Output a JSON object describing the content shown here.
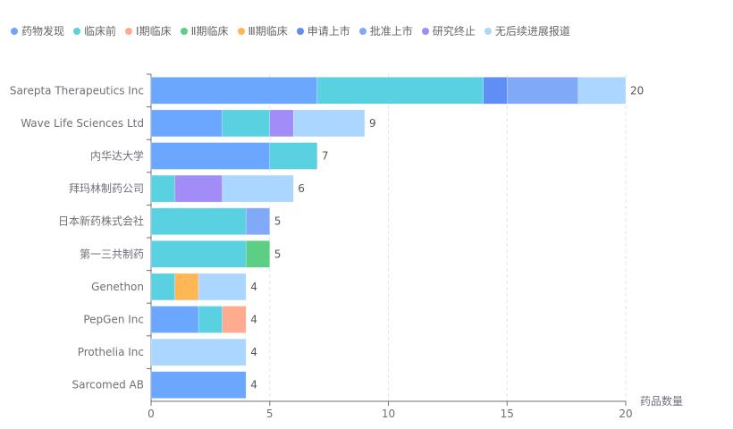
{
  "chart_data": {
    "type": "bar",
    "orientation": "horizontal",
    "stacked": true,
    "xlabel": "药品数量",
    "xlim": [
      0,
      20
    ],
    "xticks": [
      0,
      5,
      10,
      15,
      20
    ],
    "grid": "vertical dashed",
    "legend_position": "top-left",
    "categories": [
      "Sarepta Therapeutics Inc",
      "Wave Life Sciences Ltd",
      "内华达大学",
      "拜玛林制药公司",
      "日本新药株式会社",
      "第一三共制药",
      "Genethon",
      "PepGen Inc",
      "Prothelia Inc",
      "Sarcomed AB"
    ],
    "totals": [
      20,
      9,
      7,
      6,
      5,
      5,
      4,
      4,
      4,
      4
    ],
    "series": [
      {
        "name": "药物发现",
        "color": "#6ba7ff",
        "values": [
          7,
          3,
          5,
          0,
          0,
          0,
          0,
          2,
          0,
          4
        ]
      },
      {
        "name": "临床前",
        "color": "#5ad1e0",
        "values": [
          7,
          2,
          2,
          1,
          4,
          4,
          1,
          1,
          0,
          0
        ]
      },
      {
        "name": "Ⅰ期临床",
        "color": "#ffab8f",
        "values": [
          0,
          0,
          0,
          0,
          0,
          0,
          0,
          1,
          0,
          0
        ]
      },
      {
        "name": "Ⅱ期临床",
        "color": "#5dcf85",
        "values": [
          0,
          0,
          0,
          0,
          0,
          1,
          0,
          0,
          0,
          0
        ]
      },
      {
        "name": "Ⅲ期临床",
        "color": "#ffb655",
        "values": [
          0,
          0,
          0,
          0,
          0,
          0,
          1,
          0,
          0,
          0
        ]
      },
      {
        "name": "申请上市",
        "color": "#5f8ef5",
        "values": [
          1,
          0,
          0,
          0,
          0,
          0,
          0,
          0,
          0,
          0
        ]
      },
      {
        "name": "批准上市",
        "color": "#80a9f8",
        "values": [
          3,
          0,
          0,
          0,
          1,
          0,
          0,
          0,
          0,
          0
        ]
      },
      {
        "name": "研究终止",
        "color": "#a28cf6",
        "values": [
          0,
          1,
          0,
          2,
          0,
          0,
          0,
          0,
          0,
          0
        ]
      },
      {
        "name": "无后续进展报道",
        "color": "#aad6ff",
        "values": [
          2,
          3,
          0,
          3,
          0,
          0,
          2,
          0,
          4,
          0
        ]
      }
    ]
  }
}
